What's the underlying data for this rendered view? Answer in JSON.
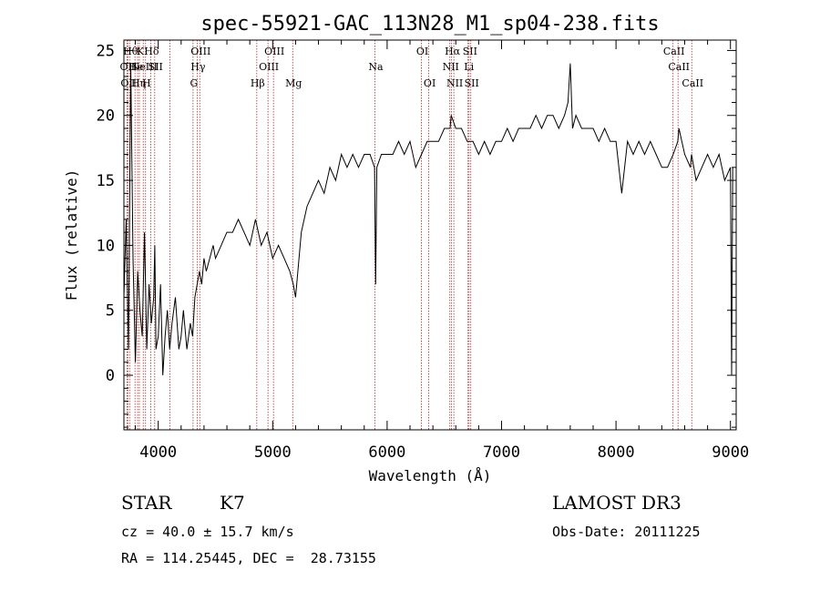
{
  "chart_data": {
    "type": "line",
    "title": "spec-55921-GAC_113N28_M1_sp04-238.fits",
    "xlabel": "Wavelength (Å)",
    "ylabel": "Flux (relative)",
    "xlim": [
      3700,
      9050
    ],
    "ylim": [
      -4.2,
      25.8
    ],
    "xticks": [
      4000,
      5000,
      6000,
      7000,
      8000,
      9000
    ],
    "yticks": [
      0,
      5,
      10,
      15,
      20,
      25
    ],
    "grid": false,
    "series": [
      {
        "x": [
          3700,
          3720,
          3740,
          3760,
          3780,
          3800,
          3820,
          3840,
          3860,
          3880,
          3900,
          3920,
          3940,
          3960,
          3970,
          3980,
          4000,
          4020,
          4040,
          4060,
          4080,
          4100,
          4120,
          4150,
          4180,
          4200,
          4220,
          4250,
          4280,
          4300,
          4320,
          4340,
          4360,
          4380,
          4400,
          4420,
          4450,
          4480,
          4500,
          4550,
          4600,
          4650,
          4700,
          4750,
          4800,
          4850,
          4900,
          4950,
          5000,
          5050,
          5100,
          5150,
          5180,
          5200,
          5250,
          5300,
          5350,
          5400,
          5450,
          5500,
          5550,
          5600,
          5650,
          5700,
          5750,
          5800,
          5850,
          5890,
          5900,
          5910,
          5950,
          6000,
          6050,
          6100,
          6150,
          6200,
          6250,
          6300,
          6350,
          6400,
          6450,
          6500,
          6550,
          6560,
          6600,
          6650,
          6700,
          6750,
          6800,
          6850,
          6900,
          6950,
          7000,
          7050,
          7100,
          7150,
          7200,
          7250,
          7300,
          7350,
          7400,
          7450,
          7500,
          7550,
          7580,
          7600,
          7620,
          7650,
          7700,
          7750,
          7800,
          7850,
          7900,
          7950,
          8000,
          8050,
          8100,
          8150,
          8200,
          8250,
          8300,
          8350,
          8400,
          8450,
          8500,
          8540,
          8550,
          8600,
          8650,
          8660,
          8700,
          8750,
          8800,
          8850,
          8900,
          8950,
          9000,
          9010,
          9020
        ],
        "y": [
          6,
          12,
          2,
          24,
          9,
          1,
          8,
          5,
          3,
          11,
          2,
          7,
          4,
          6,
          10,
          2,
          3,
          7,
          0,
          3,
          5,
          2,
          4,
          6,
          2,
          3,
          5,
          2,
          4,
          3,
          6,
          7,
          8,
          7,
          9,
          8,
          9,
          10,
          9,
          10,
          11,
          11,
          12,
          11,
          10,
          12,
          10,
          11,
          9,
          10,
          9,
          8,
          7,
          6,
          11,
          13,
          14,
          15,
          14,
          16,
          15,
          17,
          16,
          17,
          16,
          17,
          17,
          16,
          7,
          16,
          17,
          17,
          17,
          18,
          17,
          18,
          16,
          17,
          18,
          18,
          18,
          19,
          19,
          20,
          19,
          19,
          18,
          18,
          17,
          18,
          17,
          18,
          18,
          19,
          18,
          19,
          19,
          19,
          20,
          19,
          20,
          20,
          19,
          20,
          21,
          24,
          19,
          20,
          19,
          19,
          19,
          18,
          19,
          18,
          18,
          14,
          18,
          17,
          18,
          17,
          18,
          17,
          16,
          16,
          17,
          18,
          19,
          17,
          16,
          17,
          15,
          16,
          17,
          16,
          17,
          15,
          16,
          0,
          16
        ]
      }
    ],
    "lines": [
      {
        "lambda": 3727,
        "label": "OII",
        "row": 1
      },
      {
        "lambda": 3734,
        "label": "OII",
        "row": 2
      },
      {
        "lambda": 3750,
        "label": "Hθ",
        "row": 0
      },
      {
        "lambda": 3797,
        "label": "He",
        "row": 1
      },
      {
        "lambda": 3820,
        "label": "Hη",
        "row": 2
      },
      {
        "lambda": 3835,
        "label": "K",
        "row": 0
      },
      {
        "lambda": 3869,
        "label": "NeIII",
        "row": 1
      },
      {
        "lambda": 3889,
        "label": "H",
        "row": 2
      },
      {
        "lambda": 3934,
        "label": "Hδ",
        "row": 0
      },
      {
        "lambda": 3969,
        "label": "SII",
        "row": 1
      },
      {
        "lambda": 4102,
        "label": "",
        "row": 0
      },
      {
        "lambda": 4304,
        "label": "G",
        "row": 2
      },
      {
        "lambda": 4340,
        "label": "Hγ",
        "row": 1
      },
      {
        "lambda": 4363,
        "label": "OIII",
        "row": 0
      },
      {
        "lambda": 4861,
        "label": "Hβ",
        "row": 2
      },
      {
        "lambda": 4959,
        "label": "OIII",
        "row": 1
      },
      {
        "lambda": 5007,
        "label": "OIII",
        "row": 0
      },
      {
        "lambda": 5175,
        "label": "Mg",
        "row": 2
      },
      {
        "lambda": 5893,
        "label": "Na",
        "row": 1
      },
      {
        "lambda": 6300,
        "label": "OI",
        "row": 0
      },
      {
        "lambda": 6364,
        "label": "OI",
        "row": 2
      },
      {
        "lambda": 6548,
        "label": "NII",
        "row": 1
      },
      {
        "lambda": 6563,
        "label": "Hα",
        "row": 0
      },
      {
        "lambda": 6583,
        "label": "NII",
        "row": 2
      },
      {
        "lambda": 6707,
        "label": "Li",
        "row": 1
      },
      {
        "lambda": 6716,
        "label": "SII",
        "row": 0
      },
      {
        "lambda": 6731,
        "label": "SII",
        "row": 2
      },
      {
        "lambda": 8498,
        "label": "CaII",
        "row": 0
      },
      {
        "lambda": 8542,
        "label": "CaII",
        "row": 1
      },
      {
        "lambda": 8662,
        "label": "CaII",
        "row": 2
      }
    ]
  },
  "info": {
    "class_label": "STAR",
    "subclass_label": "K7",
    "cz_text": "cz = 40.0 ± 15.7 km/s",
    "coords_text": "RA = 114.25445, DEC =  28.73155",
    "survey_label": "LAMOST DR3",
    "obs_date_text": "Obs-Date: 20111225"
  }
}
